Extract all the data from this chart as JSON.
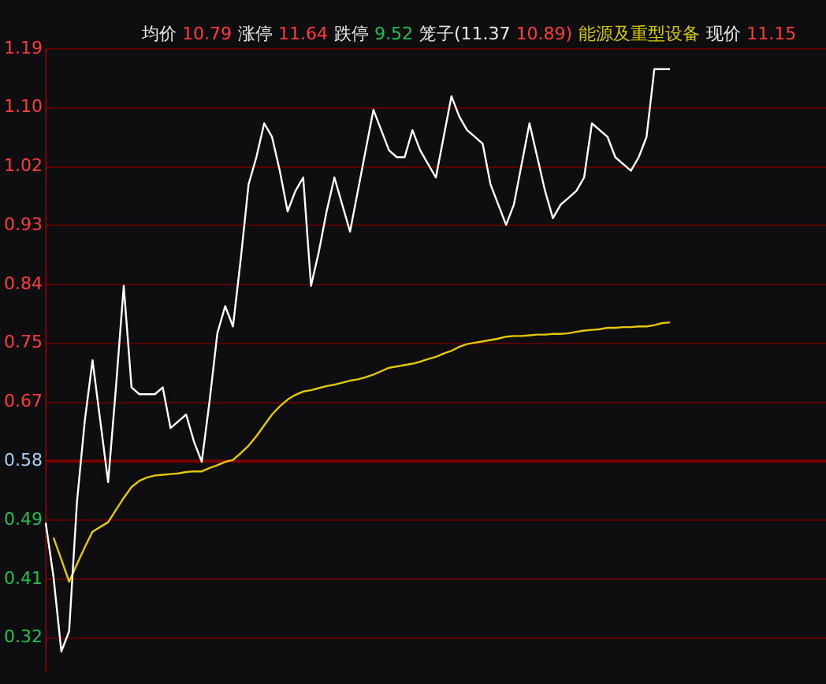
{
  "chart_data": {
    "type": "line",
    "annotations": [
      "均价 10.79",
      "涨停 11.64",
      "跌停 9.52",
      "笼子(11.37 10.89)",
      "能源及重型设备",
      "现价 11.15"
    ],
    "categories": [
      null,
      null,
      null,
      null,
      null,
      null,
      null,
      null,
      null,
      null,
      null,
      null,
      null,
      null,
      null,
      null,
      null,
      null,
      null,
      null,
      null,
      null,
      null,
      null,
      null,
      null,
      null,
      null,
      null,
      null,
      null,
      null,
      null,
      null,
      null,
      null,
      null,
      null,
      null,
      null,
      null,
      null,
      null,
      null,
      null,
      null,
      null,
      null,
      null,
      null,
      null,
      null,
      null,
      null,
      null,
      null,
      null,
      null,
      null,
      null,
      null,
      null,
      null,
      null,
      null,
      null,
      null,
      null,
      null,
      null,
      null,
      null,
      null,
      null,
      null,
      null,
      null,
      null,
      null,
      null,
      null,
      null,
      null,
      null,
      null,
      null,
      null,
      null,
      null,
      null,
      null,
      null,
      null,
      null,
      null,
      null,
      null,
      null,
      null,
      null,
      null
    ],
    "series": [
      {
        "color": "#ffffff",
        "values": [
          0.49,
          0.41,
          0.3,
          0.33,
          0.52,
          0.64,
          0.73,
          0.64,
          0.55,
          0.69,
          0.84,
          0.69,
          0.68,
          0.68,
          0.68,
          0.69,
          0.63,
          0.64,
          0.65,
          0.61,
          0.58,
          0.67,
          0.77,
          0.81,
          0.78,
          0.88,
          0.99,
          1.03,
          1.08,
          1.06,
          1.01,
          0.95,
          0.98,
          1.0,
          0.84,
          0.89,
          0.95,
          1.0,
          0.96,
          0.92,
          0.98,
          1.04,
          1.1,
          1.07,
          1.04,
          1.03,
          1.03,
          1.07,
          1.04,
          1.02,
          1.0,
          1.06,
          1.12,
          1.09,
          1.07,
          1.06,
          1.05,
          0.99,
          0.96,
          0.93,
          0.96,
          1.02,
          1.08,
          1.03,
          0.98,
          0.94,
          0.96,
          0.97,
          0.98,
          1.0,
          1.08,
          1.07,
          1.06,
          1.03,
          1.02,
          1.01,
          1.03,
          1.06,
          1.16,
          1.16,
          1.16,
          null,
          null,
          null,
          null,
          null,
          null,
          null,
          null,
          null,
          null,
          null,
          null,
          null,
          null,
          null,
          null,
          null,
          null,
          null,
          null
        ]
      },
      {
        "color": "#e6c800",
        "values": [
          null,
          0.468,
          0.436,
          0.403,
          0.429,
          0.454,
          0.477,
          0.484,
          0.491,
          0.509,
          0.527,
          0.543,
          0.552,
          0.557,
          0.56,
          0.561,
          0.562,
          0.563,
          0.565,
          0.566,
          0.566,
          0.571,
          0.575,
          0.58,
          0.583,
          0.593,
          0.604,
          0.618,
          0.634,
          0.65,
          0.662,
          0.672,
          0.679,
          0.684,
          0.686,
          0.689,
          0.692,
          0.694,
          0.697,
          0.7,
          0.702,
          0.705,
          0.709,
          0.714,
          0.719,
          0.721,
          0.723,
          0.725,
          0.728,
          0.732,
          0.735,
          0.74,
          0.744,
          0.75,
          0.754,
          0.756,
          0.758,
          0.76,
          0.762,
          0.765,
          0.766,
          0.766,
          0.767,
          0.768,
          0.768,
          0.769,
          0.769,
          0.77,
          0.772,
          0.774,
          0.775,
          0.776,
          0.778,
          0.778,
          0.779,
          0.779,
          0.78,
          0.78,
          0.782,
          0.785,
          0.786,
          null,
          null,
          null,
          null,
          null,
          null,
          null,
          null,
          null,
          null,
          null,
          null,
          null,
          null,
          null,
          null,
          null,
          null,
          null,
          null
        ]
      }
    ],
    "ylim": [
      0.272,
      1.19
    ],
    "yticks": [
      {
        "value": 1.19,
        "label": "1.19"
      },
      {
        "value": 1.103,
        "label": "1.10"
      },
      {
        "value": 1.016,
        "label": "1.02"
      },
      {
        "value": 0.929,
        "label": "0.93"
      },
      {
        "value": 0.842,
        "label": "0.84"
      },
      {
        "value": 0.755,
        "label": "0.75"
      },
      {
        "value": 0.668,
        "label": "0.67"
      },
      {
        "value": 0.581,
        "label": "0.58"
      },
      {
        "value": 0.494,
        "label": "0.49"
      },
      {
        "value": 0.407,
        "label": "0.41"
      },
      {
        "value": 0.32,
        "label": "0.32"
      }
    ],
    "ref_lines": [
      {
        "axis": "y",
        "value": 0.581,
        "color": "#7a0000"
      }
    ],
    "grid": "y",
    "tick_labels": "y",
    "legend": false
  }
}
